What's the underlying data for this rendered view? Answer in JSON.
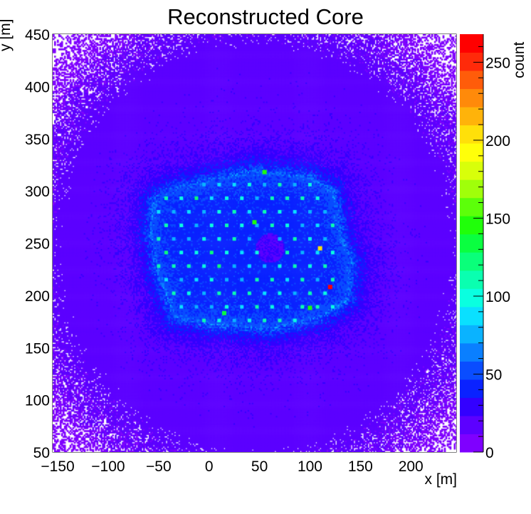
{
  "chart_data": {
    "type": "heatmap",
    "title": "Reconstructed Core",
    "xlabel": "x [m]",
    "ylabel": "y [m]",
    "zlabel": "count",
    "xlim": [
      -155,
      245
    ],
    "ylim": [
      50,
      450
    ],
    "zlim": [
      0,
      268
    ],
    "x_ticks": [
      -150,
      -100,
      -50,
      0,
      50,
      100,
      150,
      200
    ],
    "y_ticks": [
      50,
      100,
      150,
      200,
      250,
      300,
      350,
      400,
      450
    ],
    "z_ticks": [
      0,
      50,
      100,
      150,
      200,
      250
    ],
    "background_count": 18,
    "array_region": {
      "outline": [
        [
          -55,
          290
        ],
        [
          -40,
          300
        ],
        [
          0,
          310
        ],
        [
          45,
          318
        ],
        [
          100,
          312
        ],
        [
          120,
          300
        ],
        [
          125,
          285
        ],
        [
          130,
          255
        ],
        [
          140,
          230
        ],
        [
          135,
          195
        ],
        [
          110,
          180
        ],
        [
          60,
          168
        ],
        [
          0,
          173
        ],
        [
          -35,
          180
        ],
        [
          -50,
          220
        ],
        [
          -58,
          260
        ]
      ],
      "level": 55
    },
    "detector_grid": {
      "origin": [
        -40,
        176
      ],
      "spacing": 15,
      "row_spacing": 13,
      "peak_count": 95
    },
    "hot_spots": [
      {
        "x": 120,
        "y": 208,
        "count": 265
      },
      {
        "x": 110,
        "y": 245,
        "count": 200
      },
      {
        "x": 45,
        "y": 270,
        "count": 150
      },
      {
        "x": 55,
        "y": 318,
        "count": 145
      },
      {
        "x": 100,
        "y": 188,
        "count": 140
      },
      {
        "x": 15,
        "y": 183,
        "count": 130
      }
    ],
    "palette": [
      "#7f00ff",
      "#5c00ff",
      "#3300ff",
      "#0a22ff",
      "#0a4dff",
      "#0a7fff",
      "#0ab3ff",
      "#0ae0ff",
      "#0affe0",
      "#0affb0",
      "#0aff7a",
      "#0aff40",
      "#20ff0a",
      "#5cff0a",
      "#a0ff0a",
      "#d8ff0a",
      "#ffff0a",
      "#ffe00a",
      "#ffb30a",
      "#ff8a0a",
      "#ff5c0a",
      "#ff2a0a",
      "#ff0000"
    ]
  }
}
